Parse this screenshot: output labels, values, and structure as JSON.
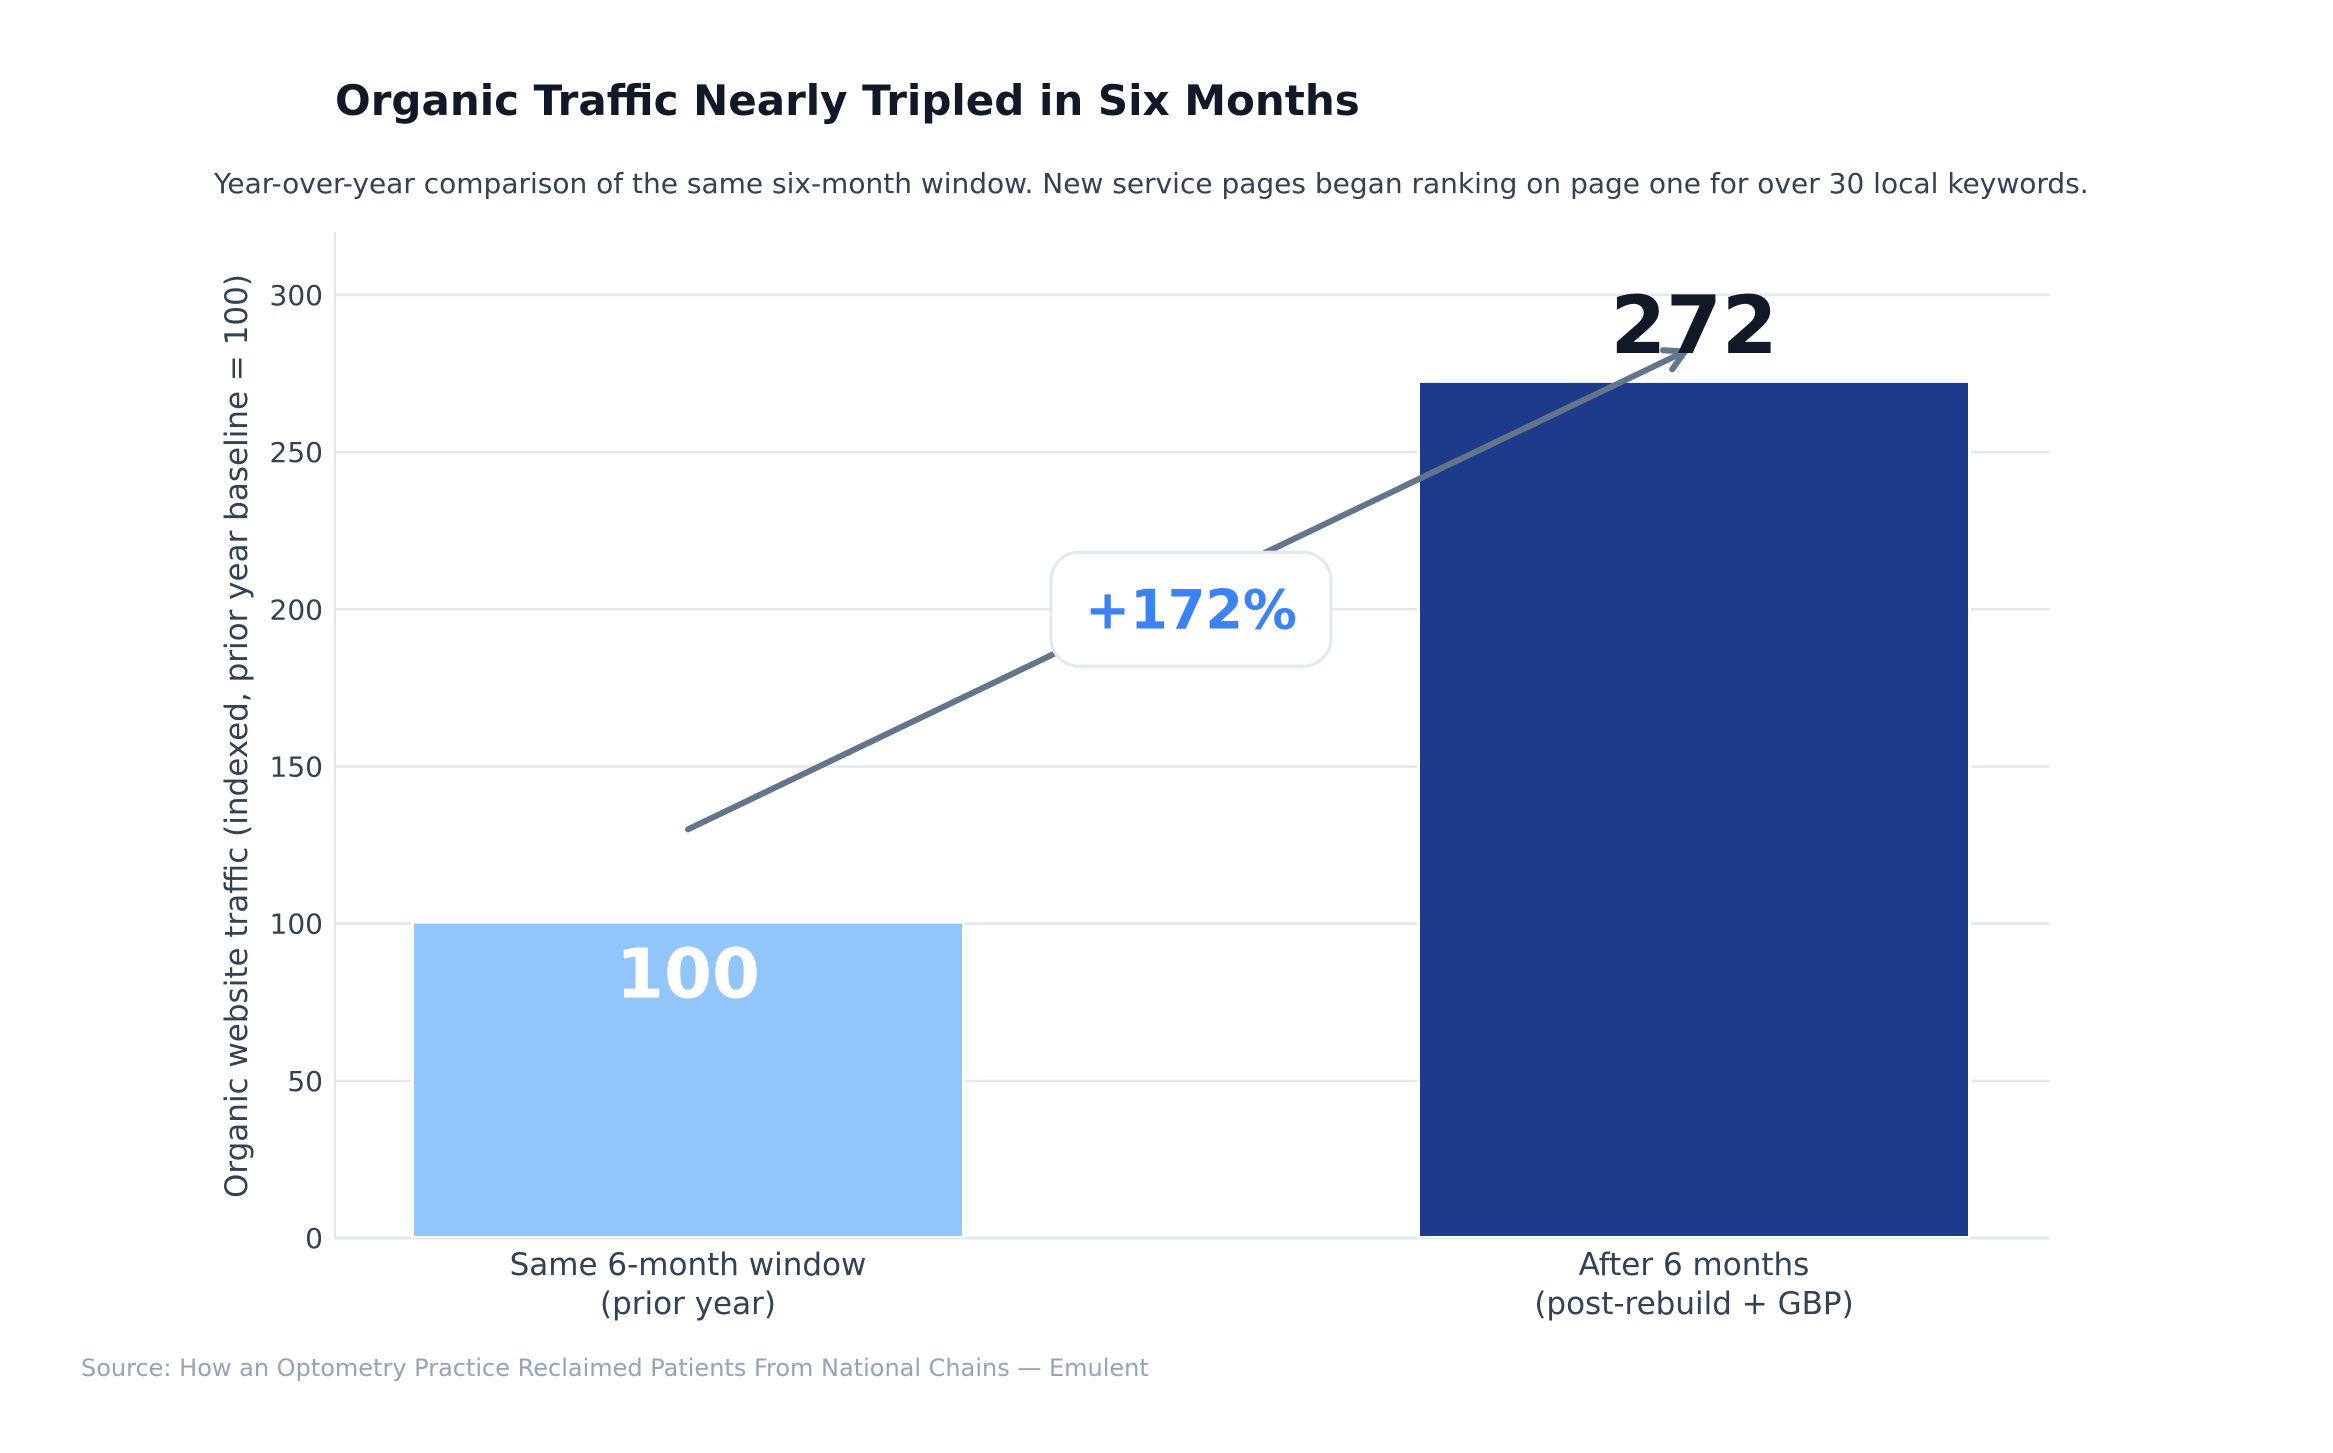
{
  "chart_data": {
    "type": "bar",
    "title": "Organic Traffic Nearly Tripled in Six Months",
    "subtitle": "Year-over-year comparison of the same six-month window. New service pages began ranking on page one for over 30 local keywords.",
    "categories": [
      [
        "Same 6-month window",
        "(prior year)"
      ],
      [
        "After 6 months",
        "(post-rebuild + GBP)"
      ]
    ],
    "values": [
      100,
      272
    ],
    "data_labels": [
      "100",
      "272"
    ],
    "bar_colors": [
      "#93c5fd",
      "#1e3a8a"
    ],
    "xlabel": "",
    "ylabel": "Organic website traffic (indexed, prior year baseline = 100)",
    "ylim": [
      0,
      320
    ],
    "yticks": [
      0,
      50,
      100,
      150,
      200,
      250,
      300
    ],
    "grid": true,
    "annotation": {
      "text": "+172%",
      "color": "#3b82f6",
      "y_value": 200,
      "arrow_from": 130,
      "arrow_to": 282
    },
    "source": "Source: How an Optometry Practice Reclaimed Patients From National Chains — Emulent"
  }
}
